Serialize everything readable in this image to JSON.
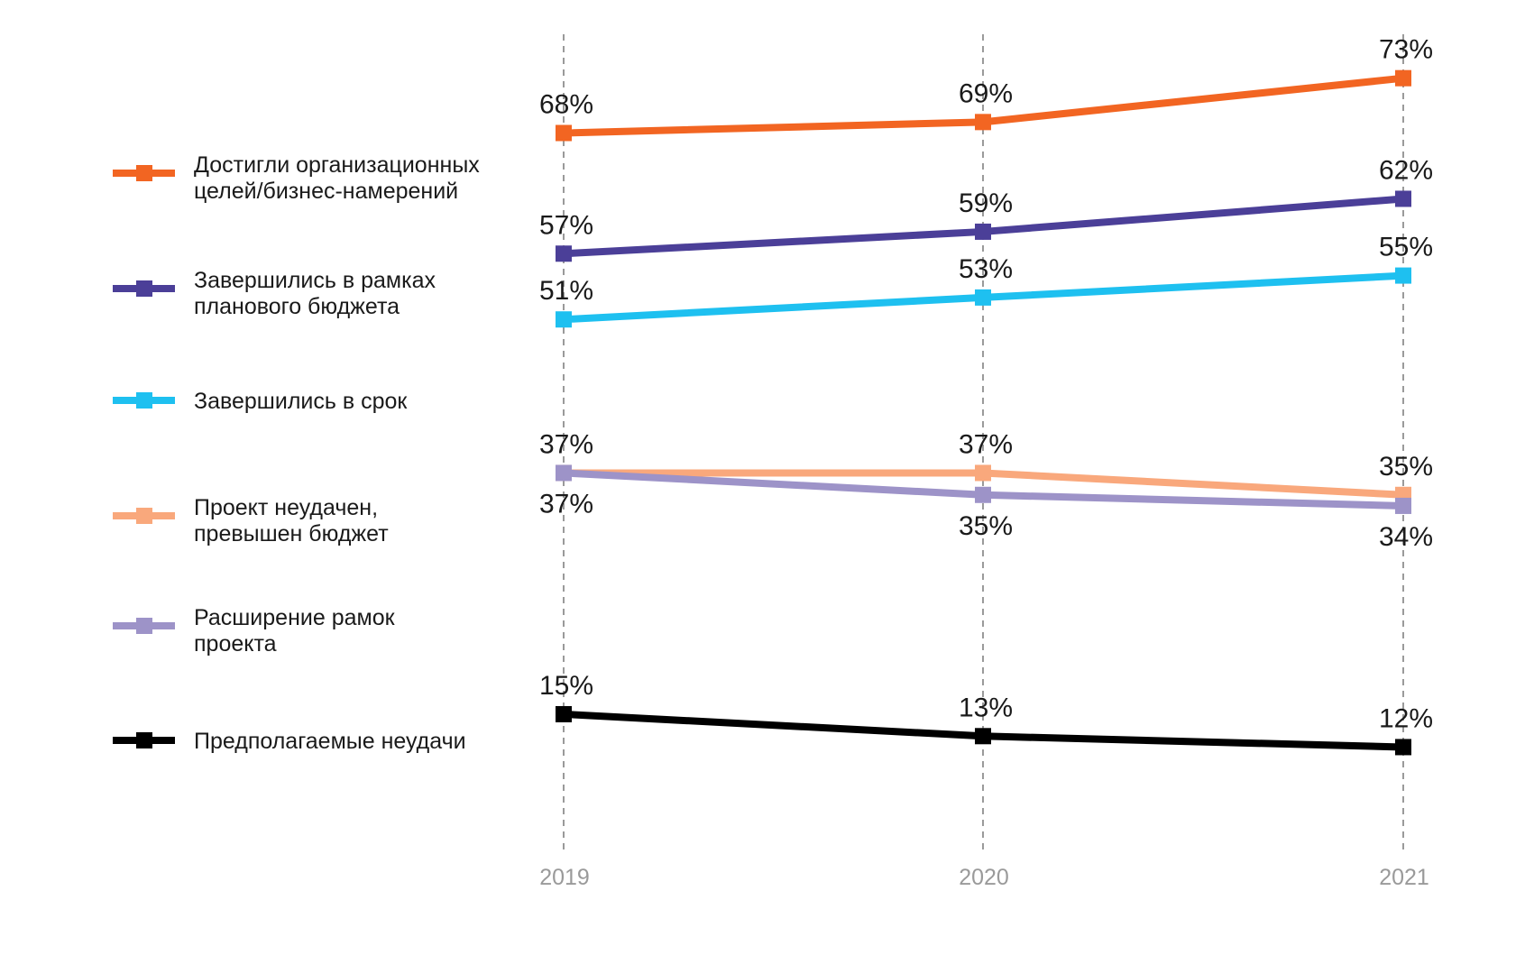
{
  "chart_data": {
    "type": "line",
    "title": "",
    "xlabel": "",
    "ylabel": "",
    "x": [
      "2019",
      "2020",
      "2021"
    ],
    "ylim": [
      0,
      100
    ],
    "grid": "vertical dashed lines at each year",
    "legend_placement": "left",
    "series": [
      {
        "name": "Достигли организационных целей/бизнес-намерений",
        "legend_lines": [
          "Достигли организационных",
          "целей/бизнес-намерений"
        ],
        "color": "#f26522",
        "values": [
          68,
          69,
          73
        ],
        "labels": [
          "68%",
          "69%",
          "73%"
        ],
        "label_position": [
          "above",
          "above",
          "above"
        ]
      },
      {
        "name": "Завершились в рамках планового бюджета",
        "legend_lines": [
          "Завершились в рамках",
          "планового бюджета"
        ],
        "color": "#4b3f98",
        "values": [
          57,
          59,
          62
        ],
        "labels": [
          "57%",
          "59%",
          "62%"
        ],
        "label_position": [
          "above",
          "above",
          "above"
        ]
      },
      {
        "name": "Завершились в срок",
        "legend_lines": [
          "Завершились в срок"
        ],
        "color": "#1ec0f0",
        "values": [
          51,
          53,
          55
        ],
        "labels": [
          "51%",
          "53%",
          "55%"
        ],
        "label_position": [
          "above",
          "above",
          "above"
        ]
      },
      {
        "name": "Проект неудачен, превышен бюджет",
        "legend_lines": [
          "Проект неудачен,",
          "превышен бюджет"
        ],
        "color": "#f9a87c",
        "values": [
          37,
          37,
          35
        ],
        "labels": [
          "37%",
          "37%",
          "35%"
        ],
        "label_position": [
          "above",
          "above",
          "above"
        ]
      },
      {
        "name": "Расширение рамок проекта",
        "legend_lines": [
          "Расширение рамок",
          "проекта"
        ],
        "color": "#9d93c8",
        "values": [
          37,
          35,
          34
        ],
        "labels": [
          "37%",
          "35%",
          "34%"
        ],
        "label_position": [
          "below",
          "below",
          "below"
        ]
      },
      {
        "name": "Предполагаемые неудачи",
        "legend_lines": [
          "Предполагаемые неудачи"
        ],
        "color": "#000000",
        "values": [
          15,
          13,
          12
        ],
        "labels": [
          "15%",
          "13%",
          "12%"
        ],
        "label_position": [
          "above",
          "above",
          "above"
        ]
      }
    ]
  }
}
